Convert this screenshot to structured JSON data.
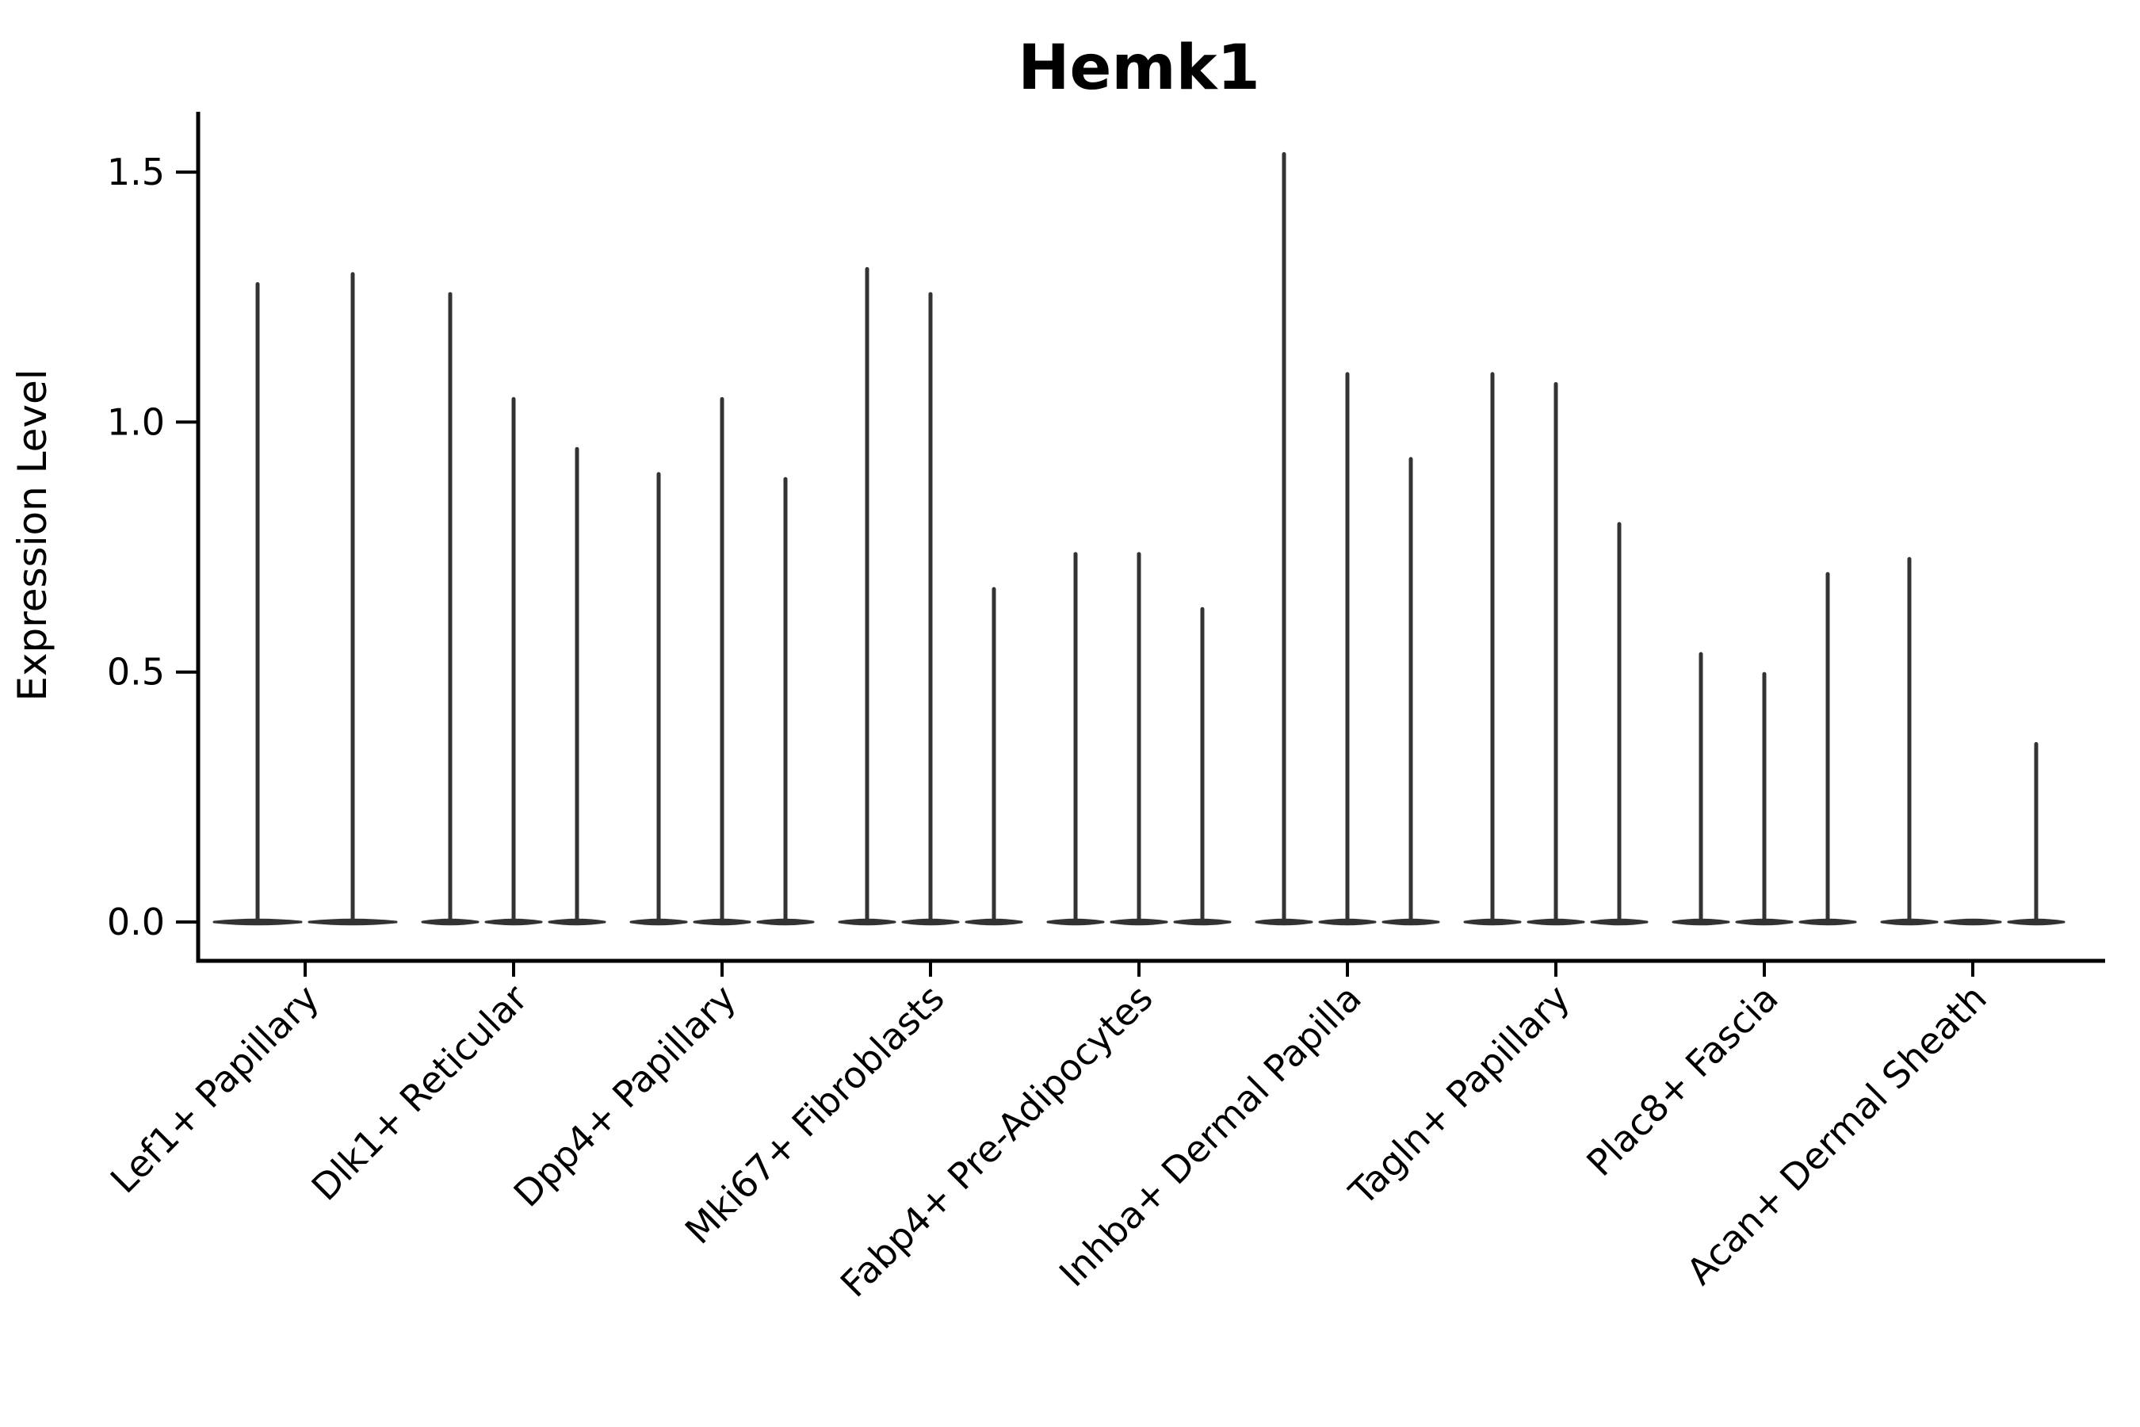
{
  "chart_data": {
    "type": "violin",
    "title": "Hemk1",
    "ylabel": "Expression Level",
    "xlabel": "",
    "ytick_values": [
      0.0,
      0.5,
      1.0,
      1.5
    ],
    "ytick_labels": [
      "0.0",
      "0.5",
      "1.0",
      "1.5"
    ],
    "ylim": [
      -0.07,
      1.62
    ],
    "grid": false,
    "legend": false,
    "background_color": "#ffffff",
    "violin_color": "#333333",
    "axis_color": "#000000",
    "description": "Violin plot of Hemk1 expression; each cell-type group contains 2-3 narrow spike violins whose bulk sits at 0 and whose spike top is the max expression value.",
    "groups": [
      {
        "label": "Lef1+ Papillary",
        "violins": [
          1.28,
          1.3
        ]
      },
      {
        "label": "Dlk1+ Reticular",
        "violins": [
          1.26,
          1.05,
          0.95
        ]
      },
      {
        "label": "Dpp4+ Papillary",
        "violins": [
          0.9,
          1.05,
          0.89
        ]
      },
      {
        "label": "Mki67+ Fibroblasts",
        "violins": [
          1.31,
          1.26,
          0.67
        ]
      },
      {
        "label": "Fabp4+ Pre-Adipocytes",
        "violins": [
          0.74,
          0.74,
          0.63
        ]
      },
      {
        "label": "Inhba+ Dermal Papilla",
        "violins": [
          1.54,
          1.1,
          0.93
        ]
      },
      {
        "label": "Tagln+ Papillary",
        "violins": [
          1.1,
          1.08,
          0.8
        ]
      },
      {
        "label": "Plac8+ Fascia",
        "violins": [
          0.54,
          0.5,
          0.7
        ]
      },
      {
        "label": "Acan+ Dermal Sheath",
        "violins": [
          0.73,
          0.0,
          0.36
        ]
      }
    ]
  }
}
